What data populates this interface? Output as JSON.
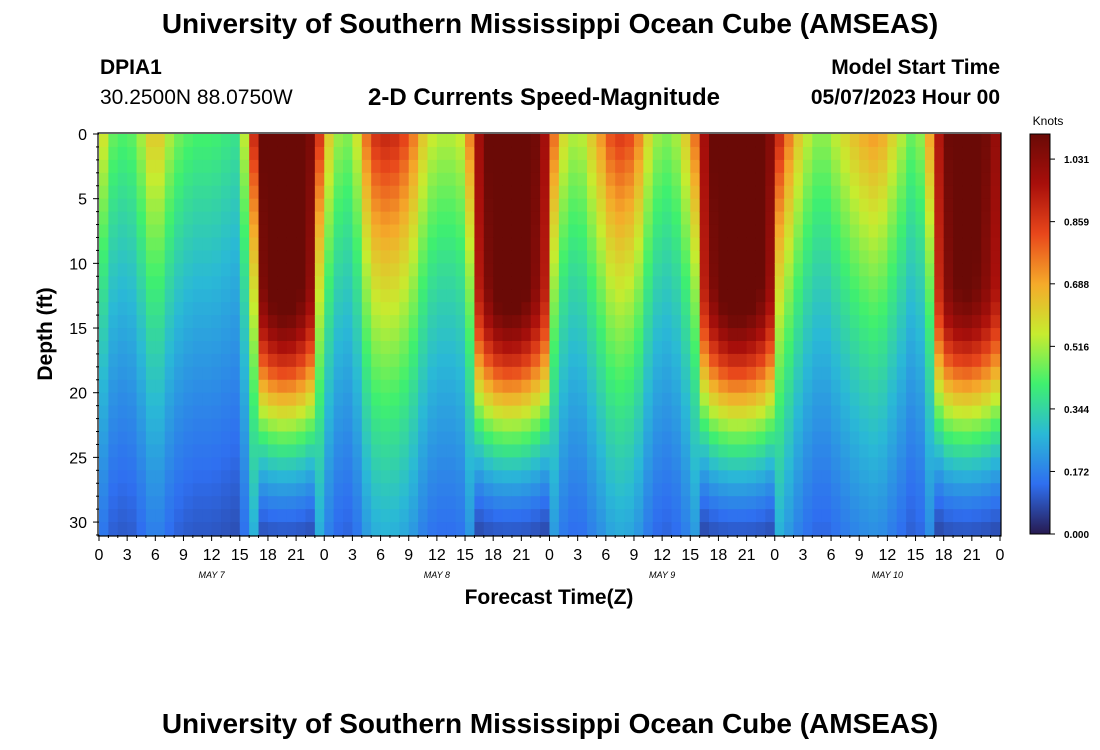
{
  "header": {
    "title": "University of Southern Mississippi Ocean Cube (AMSEAS)",
    "station_id": "DPIA1",
    "coordinates": "30.2500N  88.0750W",
    "subtitle": "2-D Currents Speed-Magnitude",
    "model_start_label": "Model Start Time",
    "model_start_value": "05/07/2023 Hour 00"
  },
  "footer": {
    "title": "University of Southern Mississippi Ocean Cube (AMSEAS)"
  },
  "colors": {
    "scale": [
      "#271a50",
      "#2f6ff0",
      "#2ab9d6",
      "#3ff06f",
      "#c7ec2f",
      "#f5aa2a",
      "#e8471b",
      "#a80f0b",
      "#6a0a06"
    ]
  },
  "chart_data": {
    "type": "heatmap",
    "title": "2-D Currents Speed-Magnitude",
    "xlabel": "Forecast Time(Z)",
    "ylabel": "Depth (ft)",
    "x_range_hours": [
      0,
      96
    ],
    "y_range_ft": [
      0,
      31
    ],
    "x_ticks": [
      {
        "hour": 0,
        "label": "0"
      },
      {
        "hour": 3,
        "label": "3"
      },
      {
        "hour": 6,
        "label": "6"
      },
      {
        "hour": 9,
        "label": "9"
      },
      {
        "hour": 12,
        "label": "12"
      },
      {
        "hour": 15,
        "label": "15"
      },
      {
        "hour": 18,
        "label": "18"
      },
      {
        "hour": 21,
        "label": "21"
      },
      {
        "hour": 24,
        "label": "0"
      },
      {
        "hour": 27,
        "label": "3"
      },
      {
        "hour": 30,
        "label": "6"
      },
      {
        "hour": 33,
        "label": "9"
      },
      {
        "hour": 36,
        "label": "12"
      },
      {
        "hour": 39,
        "label": "15"
      },
      {
        "hour": 42,
        "label": "18"
      },
      {
        "hour": 45,
        "label": "21"
      },
      {
        "hour": 48,
        "label": "0"
      },
      {
        "hour": 51,
        "label": "3"
      },
      {
        "hour": 54,
        "label": "6"
      },
      {
        "hour": 57,
        "label": "9"
      },
      {
        "hour": 60,
        "label": "12"
      },
      {
        "hour": 63,
        "label": "15"
      },
      {
        "hour": 66,
        "label": "18"
      },
      {
        "hour": 69,
        "label": "21"
      },
      {
        "hour": 72,
        "label": "0"
      },
      {
        "hour": 75,
        "label": "3"
      },
      {
        "hour": 78,
        "label": "6"
      },
      {
        "hour": 81,
        "label": "9"
      },
      {
        "hour": 84,
        "label": "12"
      },
      {
        "hour": 87,
        "label": "15"
      },
      {
        "hour": 90,
        "label": "18"
      },
      {
        "hour": 93,
        "label": "21"
      },
      {
        "hour": 96,
        "label": "0"
      }
    ],
    "date_labels": [
      {
        "hour": 12,
        "label": "MAY 7"
      },
      {
        "hour": 36,
        "label": "MAY 8"
      },
      {
        "hour": 60,
        "label": "MAY 9"
      },
      {
        "hour": 84,
        "label": "MAY 10"
      }
    ],
    "y_ticks": [
      0,
      5,
      10,
      15,
      20,
      25,
      30
    ],
    "colorbar": {
      "label": "Knots",
      "min": 0.0,
      "max": 1.1,
      "ticks": [
        "0.000",
        "0.172",
        "0.344",
        "0.516",
        "0.688",
        "0.859",
        "1.031"
      ]
    },
    "surface_speed_knots_by_hour": [
      {
        "hour": 0,
        "value": 0.55
      },
      {
        "hour": 1,
        "value": 0.35
      },
      {
        "hour": 2,
        "value": 0.32
      },
      {
        "hour": 3,
        "value": 0.3
      },
      {
        "hour": 4,
        "value": 0.35
      },
      {
        "hour": 5,
        "value": 0.45
      },
      {
        "hour": 6,
        "value": 0.55
      },
      {
        "hour": 7,
        "value": 0.45
      },
      {
        "hour": 8,
        "value": 0.36
      },
      {
        "hour": 10,
        "value": 0.3
      },
      {
        "hour": 12,
        "value": 0.3
      },
      {
        "hour": 15,
        "value": 0.25
      },
      {
        "hour": 16,
        "value": 0.6
      },
      {
        "hour": 17,
        "value": 0.95
      },
      {
        "hour": 19,
        "value": 1.1
      },
      {
        "hour": 21,
        "value": 1.08
      },
      {
        "hour": 23,
        "value": 0.9
      },
      {
        "hour": 24,
        "value": 0.6
      },
      {
        "hour": 25,
        "value": 0.4
      },
      {
        "hour": 27,
        "value": 0.35
      },
      {
        "hour": 29,
        "value": 0.75
      },
      {
        "hour": 31,
        "value": 0.8
      },
      {
        "hour": 33,
        "value": 0.7
      },
      {
        "hour": 35,
        "value": 0.45
      },
      {
        "hour": 37,
        "value": 0.4
      },
      {
        "hour": 39,
        "value": 0.45
      },
      {
        "hour": 40,
        "value": 0.8
      },
      {
        "hour": 42,
        "value": 1.05
      },
      {
        "hour": 44,
        "value": 1.1
      },
      {
        "hour": 46,
        "value": 1.02
      },
      {
        "hour": 48,
        "value": 0.8
      },
      {
        "hour": 49,
        "value": 0.5
      },
      {
        "hour": 51,
        "value": 0.38
      },
      {
        "hour": 53,
        "value": 0.55
      },
      {
        "hour": 55,
        "value": 0.75
      },
      {
        "hour": 57,
        "value": 0.7
      },
      {
        "hour": 59,
        "value": 0.4
      },
      {
        "hour": 61,
        "value": 0.35
      },
      {
        "hour": 63,
        "value": 0.55
      },
      {
        "hour": 65,
        "value": 0.95
      },
      {
        "hour": 67,
        "value": 1.1
      },
      {
        "hour": 69,
        "value": 1.1
      },
      {
        "hour": 71,
        "value": 1.0
      },
      {
        "hour": 73,
        "value": 0.7
      },
      {
        "hour": 75,
        "value": 0.45
      },
      {
        "hour": 77,
        "value": 0.35
      },
      {
        "hour": 79,
        "value": 0.45
      },
      {
        "hour": 81,
        "value": 0.55
      },
      {
        "hour": 83,
        "value": 0.6
      },
      {
        "hour": 85,
        "value": 0.45
      },
      {
        "hour": 87,
        "value": 0.3
      },
      {
        "hour": 88,
        "value": 0.45
      },
      {
        "hour": 89,
        "value": 0.7
      },
      {
        "hour": 90,
        "value": 0.95
      },
      {
        "hour": 92,
        "value": 1.05
      },
      {
        "hour": 94,
        "value": 1.0
      },
      {
        "hour": 96,
        "value": 0.85
      }
    ]
  }
}
